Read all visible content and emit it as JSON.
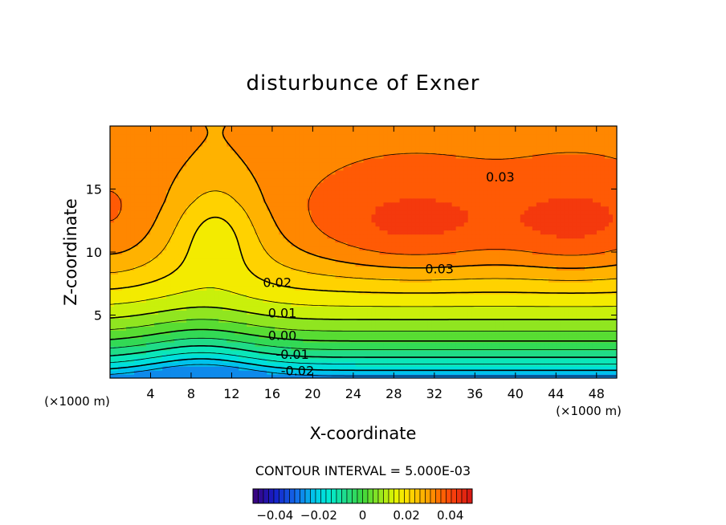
{
  "chart_data": {
    "type": "contour",
    "title": "disturbunce of Exner",
    "xlabel": "X-coordinate",
    "ylabel": "Z-coordinate",
    "x_unit_note": "(×1000 m)",
    "y_unit_note": "(×1000 m)",
    "xlim": [
      0,
      50
    ],
    "ylim": [
      0,
      20
    ],
    "xticks": [
      4,
      8,
      12,
      16,
      20,
      24,
      28,
      32,
      36,
      40,
      44,
      48
    ],
    "yticks": [
      5,
      10,
      15
    ],
    "contour_interval_text": "CONTOUR INTERVAL = 5.000E-03",
    "contour_interval": 0.005,
    "grid": false,
    "contour_labels": [
      {
        "text": "0.03",
        "x": 38.5,
        "z": 16.0
      },
      {
        "text": "0.03",
        "x": 32.5,
        "z": 8.7
      },
      {
        "text": "0.02",
        "x": 16.5,
        "z": 7.6
      },
      {
        "text": "0.01",
        "x": 17.0,
        "z": 5.2
      },
      {
        "text": "0.00",
        "x": 17.0,
        "z": 3.4
      },
      {
        "text": "-0.01",
        "x": 18.0,
        "z": 1.9
      },
      {
        "text": "-0.02",
        "x": 18.5,
        "z": 0.6
      }
    ],
    "colorbar": {
      "min": -0.05,
      "max": 0.05,
      "tick_values": [
        -0.04,
        -0.02,
        0,
        0.02,
        0.04
      ],
      "tick_labels": [
        "−0.04",
        "−0.02",
        "0",
        "0.02",
        "0.04"
      ]
    },
    "field_features": [
      {
        "kind": "max",
        "x": 30,
        "z": 11.8,
        "value": 0.037
      },
      {
        "kind": "max",
        "x": 46,
        "z": 11.8,
        "value": 0.037
      },
      {
        "kind": "max",
        "x": 0,
        "z": 12,
        "value": 0.034
      },
      {
        "kind": "min",
        "x": 9,
        "z": 0,
        "value": -0.027
      }
    ]
  }
}
